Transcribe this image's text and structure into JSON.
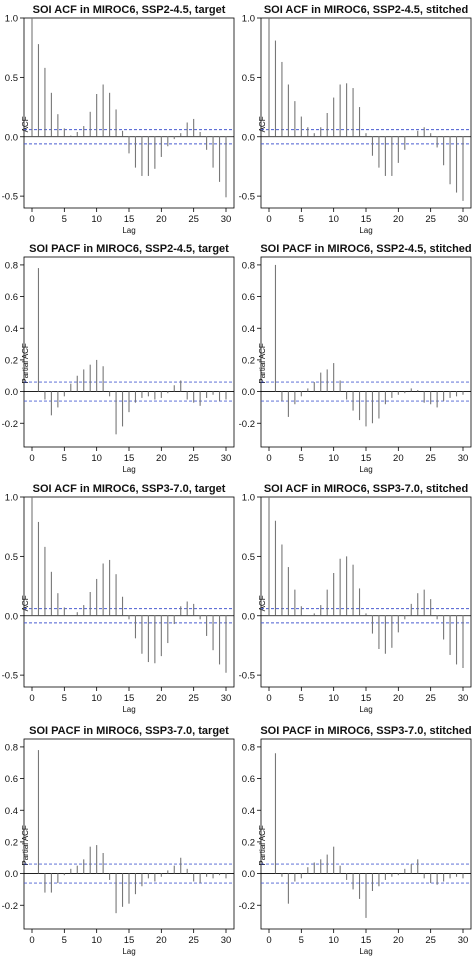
{
  "chart_data": [
    {
      "type": "bar",
      "title": "SOI ACF in MIROC6, SSP2-4.5, target",
      "xlabel": "Lag",
      "ylabel": "ACF",
      "xlim": [
        0,
        30
      ],
      "ylim": [
        -0.6,
        1.0
      ],
      "xticks": [
        0,
        5,
        10,
        15,
        20,
        25,
        30
      ],
      "yticks": [
        1.0,
        0.5,
        0.0,
        -0.5
      ],
      "ci": 0.06,
      "x": [
        0,
        1,
        2,
        3,
        4,
        5,
        6,
        7,
        8,
        9,
        10,
        11,
        12,
        13,
        14,
        15,
        16,
        17,
        18,
        19,
        20,
        21,
        22,
        23,
        24,
        25,
        26,
        27,
        28,
        29,
        30
      ],
      "values": [
        1.0,
        0.78,
        0.58,
        0.37,
        0.19,
        0.07,
        0.01,
        0.04,
        0.09,
        0.21,
        0.36,
        0.44,
        0.37,
        0.23,
        0.05,
        -0.14,
        -0.26,
        -0.33,
        -0.33,
        -0.27,
        -0.17,
        -0.08,
        -0.02,
        0.03,
        0.12,
        0.15,
        0.04,
        -0.11,
        -0.26,
        -0.38,
        -0.51
      ]
    },
    {
      "type": "bar",
      "title": "SOI ACF in MIROC6, SSP2-4.5, stitched",
      "xlabel": "Lag",
      "ylabel": "ACF",
      "xlim": [
        0,
        30
      ],
      "ylim": [
        -0.6,
        1.0
      ],
      "xticks": [
        0,
        5,
        10,
        15,
        20,
        25,
        30
      ],
      "yticks": [
        1.0,
        0.5,
        0.0,
        -0.5
      ],
      "ci": 0.06,
      "x": [
        0,
        1,
        2,
        3,
        4,
        5,
        6,
        7,
        8,
        9,
        10,
        11,
        12,
        13,
        14,
        15,
        16,
        17,
        18,
        19,
        20,
        21,
        22,
        23,
        24,
        25,
        26,
        27,
        28,
        29,
        30
      ],
      "values": [
        1.0,
        0.81,
        0.63,
        0.44,
        0.3,
        0.17,
        0.08,
        0.03,
        0.08,
        0.2,
        0.33,
        0.44,
        0.45,
        0.41,
        0.25,
        0.03,
        -0.16,
        -0.26,
        -0.33,
        -0.33,
        -0.22,
        -0.11,
        0.0,
        0.05,
        0.08,
        0.03,
        -0.09,
        -0.24,
        -0.4,
        -0.47,
        -0.54
      ]
    },
    {
      "type": "bar",
      "title": "SOI PACF in MIROC6, SSP2-4.5, target",
      "xlabel": "Lag",
      "ylabel": "Partial ACF",
      "xlim": [
        0,
        30
      ],
      "ylim": [
        -0.35,
        0.85
      ],
      "xticks": [
        0,
        5,
        10,
        15,
        20,
        25,
        30
      ],
      "yticks": [
        0.8,
        0.6,
        0.4,
        0.2,
        0.0,
        -0.2
      ],
      "ci": 0.06,
      "x": [
        1,
        2,
        3,
        4,
        5,
        6,
        7,
        8,
        9,
        10,
        11,
        12,
        13,
        14,
        15,
        16,
        17,
        18,
        19,
        20,
        21,
        22,
        23,
        24,
        25,
        26,
        27,
        28,
        29,
        30
      ],
      "values": [
        0.78,
        -0.05,
        -0.15,
        -0.1,
        -0.03,
        0.05,
        0.1,
        0.14,
        0.17,
        0.2,
        0.16,
        -0.03,
        -0.27,
        -0.22,
        -0.13,
        -0.07,
        -0.04,
        -0.03,
        -0.05,
        -0.04,
        -0.01,
        0.04,
        0.07,
        -0.05,
        -0.07,
        -0.09,
        -0.04,
        -0.02,
        -0.06,
        -0.05
      ]
    },
    {
      "type": "bar",
      "title": "SOI PACF in MIROC6, SSP2-4.5, stitched",
      "xlabel": "Lag",
      "ylabel": "Partial ACF",
      "xlim": [
        0,
        30
      ],
      "ylim": [
        -0.35,
        0.85
      ],
      "xticks": [
        0,
        5,
        10,
        15,
        20,
        25,
        30
      ],
      "yticks": [
        0.8,
        0.6,
        0.4,
        0.2,
        0.0,
        -0.2
      ],
      "ci": 0.06,
      "x": [
        1,
        2,
        3,
        4,
        5,
        6,
        7,
        8,
        9,
        10,
        11,
        12,
        13,
        14,
        15,
        16,
        17,
        18,
        19,
        20,
        21,
        22,
        23,
        24,
        25,
        26,
        27,
        28,
        29,
        30
      ],
      "values": [
        0.8,
        -0.06,
        -0.16,
        -0.08,
        -0.03,
        0.02,
        0.06,
        0.12,
        0.14,
        0.18,
        0.07,
        -0.05,
        -0.12,
        -0.18,
        -0.22,
        -0.2,
        -0.17,
        -0.08,
        -0.04,
        -0.02,
        -0.01,
        0.02,
        0.01,
        -0.07,
        -0.08,
        -0.1,
        -0.06,
        -0.04,
        -0.03,
        -0.02
      ]
    },
    {
      "type": "bar",
      "title": "SOI ACF in MIROC6, SSP3-7.0, target",
      "xlabel": "Lag",
      "ylabel": "ACF",
      "xlim": [
        0,
        30
      ],
      "ylim": [
        -0.6,
        1.0
      ],
      "xticks": [
        0,
        5,
        10,
        15,
        20,
        25,
        30
      ],
      "yticks": [
        1.0,
        0.5,
        0.0,
        -0.5
      ],
      "ci": 0.06,
      "x": [
        0,
        1,
        2,
        3,
        4,
        5,
        6,
        7,
        8,
        9,
        10,
        11,
        12,
        13,
        14,
        15,
        16,
        17,
        18,
        19,
        20,
        21,
        22,
        23,
        24,
        25,
        26,
        27,
        28,
        29,
        30
      ],
      "values": [
        1.0,
        0.79,
        0.58,
        0.37,
        0.19,
        0.07,
        0.0,
        0.03,
        0.09,
        0.2,
        0.31,
        0.44,
        0.47,
        0.35,
        0.16,
        -0.03,
        -0.19,
        -0.32,
        -0.39,
        -0.4,
        -0.34,
        -0.23,
        -0.07,
        0.08,
        0.12,
        0.1,
        -0.03,
        -0.17,
        -0.29,
        -0.41,
        -0.48
      ]
    },
    {
      "type": "bar",
      "title": "SOI ACF in MIROC6, SSP3-7.0, stitched",
      "xlabel": "Lag",
      "ylabel": "ACF",
      "xlim": [
        0,
        30
      ],
      "ylim": [
        -0.6,
        1.0
      ],
      "xticks": [
        0,
        5,
        10,
        15,
        20,
        25,
        30
      ],
      "yticks": [
        1.0,
        0.5,
        0.0,
        -0.5
      ],
      "ci": 0.06,
      "x": [
        0,
        1,
        2,
        3,
        4,
        5,
        6,
        7,
        8,
        9,
        10,
        11,
        12,
        13,
        14,
        15,
        16,
        17,
        18,
        19,
        20,
        21,
        22,
        23,
        24,
        25,
        26,
        27,
        28,
        29,
        30
      ],
      "values": [
        1.0,
        0.8,
        0.6,
        0.41,
        0.22,
        0.08,
        0.0,
        0.02,
        0.09,
        0.22,
        0.36,
        0.48,
        0.5,
        0.43,
        0.23,
        0.02,
        -0.15,
        -0.28,
        -0.32,
        -0.27,
        -0.14,
        -0.03,
        0.1,
        0.19,
        0.22,
        0.14,
        -0.03,
        -0.2,
        -0.33,
        -0.41,
        -0.44
      ]
    },
    {
      "type": "bar",
      "title": "SOI PACF in MIROC6, SSP3-7.0, target",
      "xlabel": "Lag",
      "ylabel": "Partial ACF",
      "xlim": [
        0,
        30
      ],
      "ylim": [
        -0.35,
        0.85
      ],
      "xticks": [
        0,
        5,
        10,
        15,
        20,
        25,
        30
      ],
      "yticks": [
        0.8,
        0.6,
        0.4,
        0.2,
        0.0,
        -0.2
      ],
      "ci": 0.06,
      "x": [
        1,
        2,
        3,
        4,
        5,
        6,
        7,
        8,
        9,
        10,
        11,
        12,
        13,
        14,
        15,
        16,
        17,
        18,
        19,
        20,
        21,
        22,
        23,
        24,
        25,
        26,
        27,
        28,
        29,
        30
      ],
      "values": [
        0.78,
        -0.12,
        -0.12,
        -0.06,
        -0.01,
        0.03,
        0.05,
        0.09,
        0.17,
        0.18,
        0.13,
        -0.04,
        -0.25,
        -0.21,
        -0.19,
        -0.13,
        -0.08,
        -0.03,
        -0.05,
        -0.02,
        0.02,
        0.05,
        0.1,
        0.03,
        -0.05,
        -0.06,
        -0.02,
        -0.03,
        -0.01,
        -0.03
      ]
    },
    {
      "type": "bar",
      "title": "SOI PACF in MIROC6, SSP3-7.0, stitched",
      "xlabel": "Lag",
      "ylabel": "Partial ACF",
      "xlim": [
        0,
        30
      ],
      "ylim": [
        -0.35,
        0.85
      ],
      "xticks": [
        0,
        5,
        10,
        15,
        20,
        25,
        30
      ],
      "yticks": [
        0.8,
        0.6,
        0.4,
        0.2,
        0.0,
        -0.2
      ],
      "ci": 0.06,
      "x": [
        1,
        2,
        3,
        4,
        5,
        6,
        7,
        8,
        9,
        10,
        11,
        12,
        13,
        14,
        15,
        16,
        17,
        18,
        19,
        20,
        21,
        22,
        23,
        24,
        25,
        26,
        27,
        28,
        29,
        30
      ],
      "values": [
        0.76,
        -0.02,
        -0.19,
        -0.05,
        -0.03,
        0.04,
        0.07,
        0.09,
        0.12,
        0.17,
        0.05,
        -0.04,
        -0.1,
        -0.16,
        -0.28,
        -0.11,
        -0.08,
        -0.04,
        -0.02,
        -0.01,
        0.03,
        0.06,
        0.09,
        -0.03,
        -0.06,
        -0.07,
        -0.05,
        -0.03,
        -0.02,
        -0.03
      ]
    }
  ],
  "colors": {
    "bar": "#777777",
    "zero_line": "#000000",
    "ci_line": "#4a5cd1",
    "frame": "#000000",
    "background": "#ffffff"
  }
}
